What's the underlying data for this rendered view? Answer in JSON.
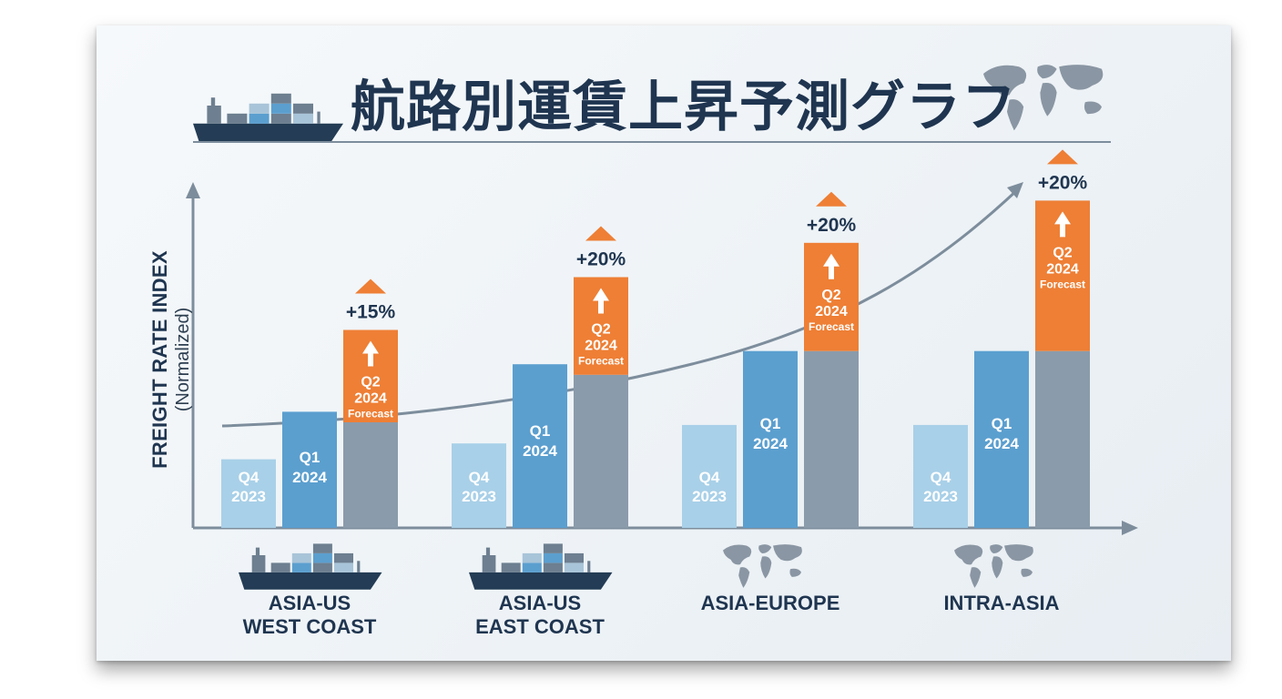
{
  "title": "航路別運賃上昇予測グラフ",
  "icons": [
    "container-ship-icon",
    "world-map-icon",
    "up-arrow-icon"
  ],
  "colors": {
    "q4_2023": "#a8d0e8",
    "q1_2024": "#5b9fcf",
    "q2_base": "#8a9bab",
    "q2_forecast": "#ee7f35",
    "title_text": "#1f3550",
    "trend_line": "#7d8d9c"
  },
  "chart_data": {
    "type": "bar",
    "ylabel": "FREIGHT RATE INDEX",
    "ylabel_sub": "(Normalized)",
    "xlabel": "",
    "grid": false,
    "y_tick_labels": false,
    "categories": [
      {
        "line1": "ASIA-US",
        "line2": "WEST COAST",
        "icon": "container-ship-icon"
      },
      {
        "line1": "ASIA-US",
        "line2": "EAST COAST",
        "icon": "container-ship-icon"
      },
      {
        "line1": "ASIA-EUROPE",
        "line2": "",
        "icon": "world-map-icon"
      },
      {
        "line1": "INTRA-ASIA",
        "line2": "",
        "icon": "world-map-icon"
      }
    ],
    "series": [
      {
        "name": "Q4 2023",
        "label": [
          "Q4",
          "2023"
        ],
        "values": [
          26,
          32,
          39,
          39
        ]
      },
      {
        "name": "Q1 2024",
        "label": [
          "Q1",
          "2024"
        ],
        "values": [
          44,
          62,
          67,
          67
        ]
      },
      {
        "name": "Q2 2024 Forecast",
        "label": [
          "Q2",
          "2024",
          "Forecast"
        ],
        "base_values": [
          40,
          58,
          67,
          67
        ],
        "values": [
          75,
          95,
          108,
          124
        ]
      }
    ],
    "increase_labels": [
      "+15%",
      "+20%",
      "+20%",
      "+20%"
    ],
    "trend_line": true,
    "ylim": [
      0,
      140
    ]
  }
}
